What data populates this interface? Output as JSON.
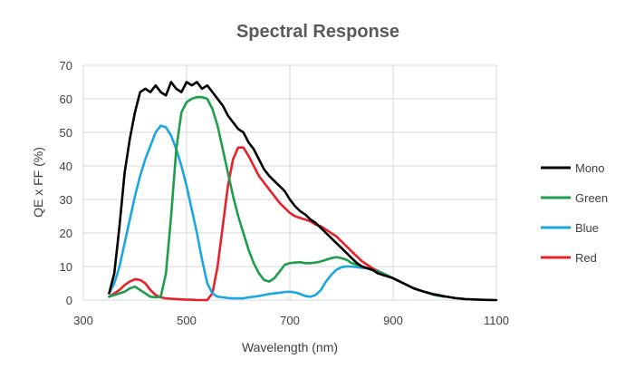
{
  "chart_data": {
    "type": "line",
    "title": "Spectral Response",
    "xlabel": "Wavelength (nm)",
    "ylabel": "QE x FF (%)",
    "xlim": [
      300,
      1100
    ],
    "ylim": [
      0,
      70
    ],
    "xticks": [
      300,
      500,
      700,
      900,
      1100
    ],
    "yticks": [
      0,
      10,
      20,
      30,
      40,
      50,
      60,
      70
    ],
    "grid": true,
    "legend": "right",
    "series": [
      {
        "name": "Mono",
        "color": "#000000",
        "x": [
          350,
          360,
          370,
          380,
          390,
          400,
          410,
          420,
          430,
          440,
          450,
          460,
          470,
          480,
          490,
          500,
          510,
          520,
          530,
          540,
          550,
          560,
          570,
          580,
          590,
          600,
          610,
          620,
          630,
          640,
          650,
          660,
          670,
          680,
          690,
          700,
          710,
          720,
          730,
          740,
          750,
          760,
          770,
          780,
          790,
          800,
          810,
          820,
          830,
          840,
          850,
          860,
          870,
          880,
          900,
          920,
          940,
          960,
          980,
          1000,
          1020,
          1040,
          1060,
          1080,
          1100
        ],
        "y": [
          2,
          8,
          22,
          38,
          48,
          56,
          62,
          63,
          62,
          64,
          62,
          61,
          65,
          63,
          62,
          65,
          64,
          65,
          63,
          64,
          62,
          60,
          58,
          55,
          53,
          51,
          50,
          47,
          45,
          42,
          39,
          37,
          35.5,
          34,
          32.5,
          30,
          28,
          26.5,
          25.5,
          24,
          23,
          21.5,
          20,
          18.5,
          17,
          15.5,
          14,
          12.5,
          11,
          10,
          9.5,
          9,
          8,
          7.5,
          6.5,
          5,
          3.5,
          2.5,
          1.7,
          1.1,
          0.6,
          0.3,
          0.15,
          0.05,
          0
        ]
      },
      {
        "name": "Green",
        "color": "#1e9e4a",
        "x": [
          350,
          360,
          370,
          380,
          390,
          400,
          410,
          420,
          430,
          440,
          450,
          460,
          470,
          480,
          490,
          500,
          510,
          520,
          530,
          540,
          550,
          560,
          570,
          580,
          590,
          600,
          610,
          620,
          630,
          640,
          650,
          660,
          670,
          680,
          690,
          700,
          710,
          720,
          730,
          740,
          750,
          760,
          770,
          780,
          790,
          800,
          810,
          820,
          830,
          840,
          850,
          860,
          880,
          900,
          920,
          940,
          960,
          980,
          1000
        ],
        "y": [
          1,
          1.5,
          2,
          2.5,
          3.5,
          4,
          3,
          2,
          1,
          0.8,
          1,
          8,
          25,
          45,
          56,
          59,
          60,
          60.5,
          60.5,
          60,
          57,
          52,
          45,
          38,
          31,
          25,
          20,
          15,
          11,
          8,
          6,
          5.5,
          6.5,
          8.5,
          10.5,
          11,
          11.2,
          11.3,
          11,
          11,
          11.2,
          11.5,
          12,
          12.5,
          12.8,
          12.5,
          12,
          11,
          10.5,
          10,
          9.5,
          9,
          8,
          6.5,
          5,
          3.5,
          2.5,
          1.5,
          1
        ]
      },
      {
        "name": "Blue",
        "color": "#1aa7e0",
        "x": [
          350,
          360,
          370,
          380,
          390,
          400,
          410,
          420,
          430,
          440,
          450,
          460,
          470,
          480,
          490,
          500,
          510,
          520,
          530,
          540,
          550,
          560,
          570,
          580,
          590,
          600,
          610,
          620,
          630,
          640,
          650,
          660,
          670,
          680,
          690,
          700,
          710,
          720,
          730,
          740,
          750,
          760,
          770,
          780,
          790,
          800,
          810,
          820,
          830,
          840,
          850,
          860,
          880,
          900,
          920,
          940,
          960,
          980,
          1000
        ],
        "y": [
          2,
          5,
          10,
          17,
          24,
          31,
          37,
          42,
          46,
          50,
          52,
          51.5,
          49,
          45,
          40,
          34,
          27,
          20,
          12,
          5,
          2,
          1,
          0.8,
          0.6,
          0.5,
          0.5,
          0.5,
          0.8,
          1,
          1.2,
          1.5,
          1.8,
          2,
          2.2,
          2.4,
          2.5,
          2.3,
          1.8,
          1.2,
          1,
          1.5,
          3,
          5.5,
          7.5,
          9,
          9.8,
          10,
          10,
          9.8,
          9.6,
          9.5,
          9,
          8,
          6.5,
          5,
          3.5,
          2.5,
          1.5,
          1
        ]
      },
      {
        "name": "Red",
        "color": "#e8202a",
        "x": [
          350,
          360,
          370,
          380,
          390,
          400,
          410,
          420,
          430,
          440,
          450,
          460,
          470,
          480,
          490,
          500,
          510,
          520,
          530,
          540,
          550,
          560,
          570,
          580,
          590,
          600,
          610,
          620,
          630,
          640,
          650,
          660,
          670,
          680,
          690,
          700,
          710,
          720,
          730,
          740,
          750,
          760,
          770,
          780,
          790,
          800,
          810,
          820,
          830,
          840,
          850,
          860,
          880,
          900,
          920,
          940,
          960,
          980,
          1000
        ],
        "y": [
          1,
          2,
          3,
          4.5,
          5.5,
          6.2,
          6,
          5,
          3,
          1.5,
          0.8,
          0.5,
          0.4,
          0.3,
          0.2,
          0.1,
          0.1,
          0,
          0,
          0,
          2,
          10,
          22,
          34,
          42,
          45.5,
          45.5,
          43,
          40,
          37,
          35,
          33,
          31,
          29,
          27.5,
          26,
          25,
          24.5,
          24,
          23.5,
          22.5,
          22,
          21,
          20,
          19,
          17.5,
          16,
          14.5,
          13,
          11.5,
          10.5,
          9.5,
          8,
          6.5,
          5,
          3.5,
          2.5,
          1.5,
          1
        ]
      }
    ]
  }
}
